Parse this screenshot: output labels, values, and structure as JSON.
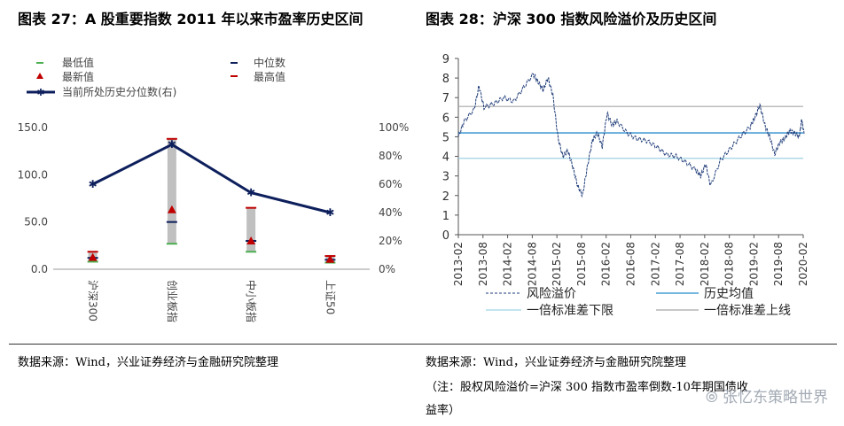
{
  "left": {
    "title": "图表 27：A 股重要指数 2011 年以来市盈率历史区间",
    "source": "数据来源：Wind，兴业证券经济与金融研究院整理",
    "chart_data": {
      "type": "bar-range",
      "categories": [
        "沪深300",
        "创业板指",
        "中小板指",
        "上证50"
      ],
      "legend": {
        "min": "最低值",
        "median": "中位数",
        "latest": "最新值",
        "max": "最高值",
        "percentile": "当前所处历史分位数(右)"
      },
      "min": [
        8.0,
        27.0,
        18.5,
        7.0
      ],
      "median": [
        12.0,
        50.0,
        30.0,
        10.0
      ],
      "latest": [
        12.5,
        63.0,
        30.0,
        10.5
      ],
      "max": [
        18.5,
        138.0,
        65.0,
        14.0
      ],
      "percentile": [
        0.6,
        0.88,
        0.54,
        0.4
      ],
      "left_axis": {
        "ylim": [
          0,
          150
        ],
        "ticks": [
          "0.0",
          "50.0",
          "100.0",
          "150.0"
        ]
      },
      "right_axis": {
        "ylim": [
          0,
          1
        ],
        "ticks": [
          "0%",
          "20%",
          "40%",
          "60%",
          "80%",
          "100%"
        ]
      },
      "colors": {
        "range": "#c0c0c0",
        "min": "#4caf50",
        "median": "#0d1f5c",
        "latest": "#c00000",
        "max": "#c00000",
        "percentile": "#0d1f5c"
      }
    }
  },
  "right": {
    "title": "图表 28：沪深 300 指数风险溢价及历史区间",
    "source": "数据来源：Wind，兴业证券经济与金融研究院整理",
    "note": "（注：股权风险溢价=沪深 300 指数市盈率倒数-10年期国债收益率）",
    "note_line1": "（注：股权风险溢价=沪深 300 指数市盈率倒数-10年期国债收",
    "note_line2": "益率）",
    "chart_data": {
      "type": "line",
      "xlabel": "",
      "ylabel": "",
      "ylim": [
        0,
        9
      ],
      "yticks": [
        "0",
        "1",
        "2",
        "3",
        "4",
        "5",
        "6",
        "7",
        "8",
        "9"
      ],
      "xticks": [
        "2013-02",
        "2013-08",
        "2014-02",
        "2014-08",
        "2015-02",
        "2015-08",
        "2016-02",
        "2016-08",
        "2017-02",
        "2017-08",
        "2018-02",
        "2018-08",
        "2019-02",
        "2019-08",
        "2020-02"
      ],
      "series": [
        {
          "name": "风险溢价",
          "x": [
            2013.08,
            2013.2,
            2013.4,
            2013.5,
            2013.6,
            2013.8,
            2014.0,
            2014.2,
            2014.4,
            2014.6,
            2014.7,
            2014.8,
            2014.9,
            2015.0,
            2015.1,
            2015.2,
            2015.3,
            2015.4,
            2015.5,
            2015.6,
            2015.7,
            2015.8,
            2015.9,
            2016.0,
            2016.1,
            2016.2,
            2016.3,
            2016.5,
            2016.7,
            2016.9,
            2017.1,
            2017.3,
            2017.5,
            2017.7,
            2017.9,
            2018.0,
            2018.1,
            2018.2,
            2018.4,
            2018.6,
            2018.8,
            2019.0,
            2019.1,
            2019.2,
            2019.3,
            2019.4,
            2019.5,
            2019.6,
            2019.7,
            2019.8,
            2019.9,
            2020.0,
            2020.05,
            2020.1
          ],
          "values": [
            5.0,
            5.8,
            6.4,
            7.6,
            6.5,
            6.7,
            7.0,
            6.8,
            7.5,
            8.2,
            7.8,
            7.4,
            8.0,
            7.1,
            5.0,
            4.0,
            4.3,
            3.5,
            2.5,
            2.0,
            3.5,
            4.8,
            5.2,
            4.5,
            6.2,
            5.6,
            5.8,
            5.2,
            4.9,
            4.8,
            4.5,
            4.1,
            4.0,
            3.7,
            3.3,
            3.0,
            3.6,
            2.5,
            3.8,
            4.4,
            5.0,
            5.5,
            6.0,
            6.6,
            5.6,
            5.0,
            4.1,
            4.7,
            4.9,
            5.3,
            5.2,
            5.0,
            5.9,
            5.1
          ],
          "style": "dashed",
          "color": "#1f3c78"
        },
        {
          "name": "历史均值",
          "value": 5.2,
          "color": "#4a9dd4"
        },
        {
          "name": "一倍标准差下限",
          "value": 3.9,
          "color": "#9dd3e5"
        },
        {
          "name": "一倍标准差上线",
          "value": 6.55,
          "color": "#a6a6a6"
        }
      ],
      "x_range": [
        2013.08,
        2020.08
      ],
      "legend_position": "bottom"
    }
  },
  "watermark": "张忆东策略世界"
}
